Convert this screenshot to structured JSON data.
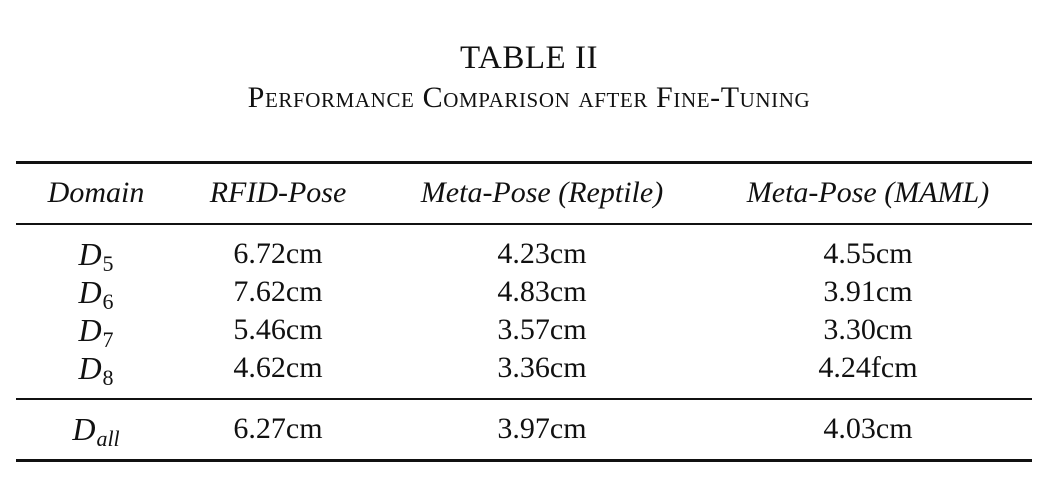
{
  "table": {
    "label": "TABLE II",
    "title": "Performance Comparison after Fine-Tuning",
    "headers": [
      "Domain",
      "RFID-Pose",
      "Meta-Pose (Reptile)",
      "Meta-Pose (MAML)"
    ],
    "rows": [
      {
        "domain_symbol": "D",
        "domain_subscript": "5",
        "values": [
          "6.72cm",
          "4.23cm",
          "4.55cm"
        ]
      },
      {
        "domain_symbol": "D",
        "domain_subscript": "6",
        "values": [
          "7.62cm",
          "4.83cm",
          "3.91cm"
        ]
      },
      {
        "domain_symbol": "D",
        "domain_subscript": "7",
        "values": [
          "5.46cm",
          "3.57cm",
          "3.30cm"
        ]
      },
      {
        "domain_symbol": "D",
        "domain_subscript": "8",
        "values": [
          "4.62cm",
          "3.36cm",
          "4.24fcm"
        ]
      }
    ],
    "summary": {
      "domain_symbol": "D",
      "domain_subscript": "all",
      "values": [
        "6.27cm",
        "3.97cm",
        "4.03cm"
      ]
    }
  }
}
